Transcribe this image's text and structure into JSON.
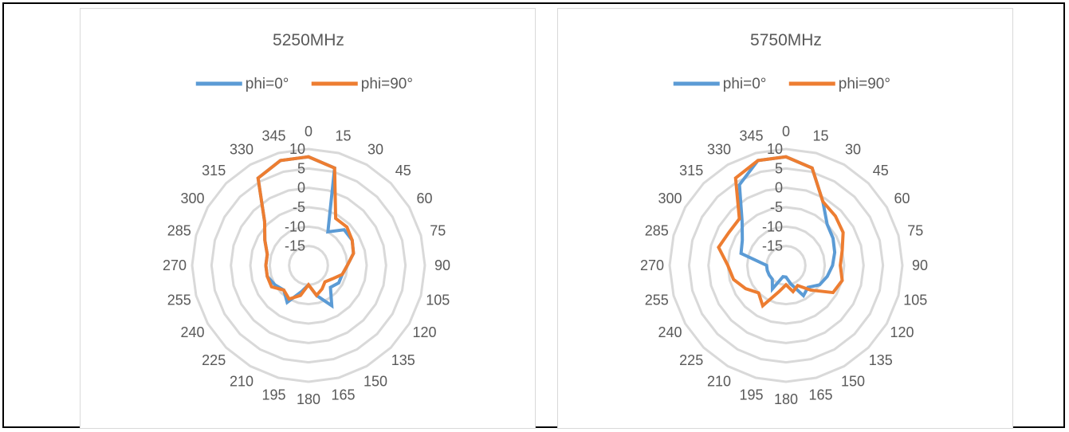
{
  "chart_data": [
    {
      "type": "radar",
      "title": "5250MHz",
      "angles": [
        "0",
        "15",
        "30",
        "45",
        "60",
        "75",
        "90",
        "105",
        "120",
        "135",
        "150",
        "165",
        "180",
        "195",
        "210",
        "225",
        "240",
        "255",
        "270",
        "285",
        "300",
        "315",
        "330",
        "345"
      ],
      "radial_ticks": [
        "-15",
        "-10",
        "-5",
        "0",
        "5",
        "10"
      ],
      "rlim": [
        -20,
        10
      ],
      "grid": true,
      "legend_position": "top",
      "series": [
        {
          "name": "phi=0°",
          "color": "#5b9bd5",
          "values": [
            8,
            6,
            -10,
            -7,
            -7,
            -8,
            -10,
            -11,
            -11,
            -12,
            -8,
            -12,
            -15,
            -13,
            -9,
            -11,
            -10,
            -9,
            -9,
            -9,
            -7,
            -4,
            6,
            8
          ]
        },
        {
          "name": "phi=90°",
          "color": "#ed7d31",
          "values": [
            8,
            6,
            -6,
            -6,
            -7,
            -8,
            -10,
            -11,
            -13,
            -14,
            -13,
            -12,
            -15,
            -12,
            -10,
            -11,
            -9,
            -9,
            -9,
            -9,
            -7,
            -4,
            6,
            8
          ]
        }
      ]
    },
    {
      "type": "radar",
      "title": "5750MHz",
      "angles": [
        "0",
        "15",
        "30",
        "45",
        "60",
        "75",
        "90",
        "105",
        "120",
        "135",
        "150",
        "165",
        "180",
        "195",
        "210",
        "225",
        "240",
        "255",
        "270",
        "285",
        "300",
        "315",
        "330",
        "345"
      ],
      "radial_ticks": [
        "-15",
        "-10",
        "-5",
        "0",
        "5",
        "10"
      ],
      "rlim": [
        -20,
        10
      ],
      "grid": true,
      "legend_position": "top",
      "series": [
        {
          "name": "phi=0°",
          "color": "#5b9bd5",
          "values": [
            8,
            6,
            -1,
            -5,
            -6,
            -7,
            -8,
            -9,
            -10,
            -12,
            -11,
            -15,
            -17,
            -17,
            -13,
            -15,
            -15,
            -15,
            -15,
            -8,
            -7,
            -4,
            4,
            8
          ]
        },
        {
          "name": "phi=90°",
          "color": "#ed7d31",
          "values": [
            8,
            6,
            -1,
            -2,
            -3,
            -5,
            -6,
            -5,
            -6,
            -11,
            -14,
            -13,
            -15,
            -13,
            -8,
            -10,
            -8,
            -6,
            -5,
            -2,
            -3,
            -3,
            6,
            8
          ]
        }
      ]
    }
  ]
}
